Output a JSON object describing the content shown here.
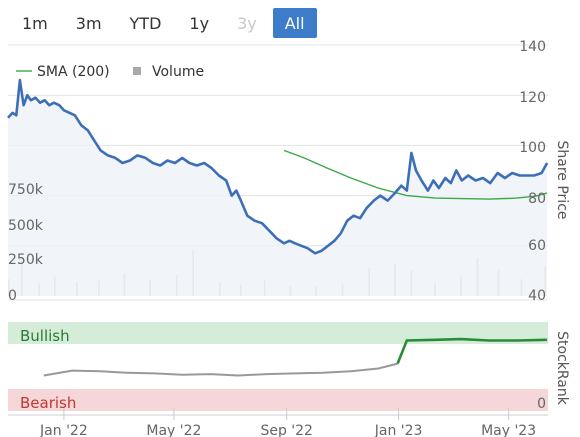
{
  "range_selector": {
    "buttons": [
      {
        "label": "1m",
        "state": "normal"
      },
      {
        "label": "3m",
        "state": "normal"
      },
      {
        "label": "YTD",
        "state": "normal"
      },
      {
        "label": "1y",
        "state": "normal"
      },
      {
        "label": "3y",
        "state": "disabled"
      },
      {
        "label": "All",
        "state": "active"
      }
    ]
  },
  "colors": {
    "price_line": "#3d6fb8",
    "sma_line": "#39a845",
    "volume_bar": "#c4c4c4",
    "stockrank_neutral": "#999999",
    "stockrank_bullish": "#2a8c3a",
    "bullish_band": "#d5ecd9",
    "bearish_band": "#f5d6d9",
    "price_fill": "#eef2f8",
    "button_active": "#3d7cc9"
  },
  "chart_data": {
    "type": "line",
    "legend": [
      {
        "label": "SMA (200)",
        "symbol": "line"
      },
      {
        "label": "Volume",
        "symbol": "square"
      }
    ],
    "price_axis": {
      "title": "Share Price",
      "ticks": [
        "140",
        "120",
        "100",
        "80",
        "60",
        "40"
      ],
      "range": [
        40,
        140
      ]
    },
    "volume_axis": {
      "ticks": [
        "750k",
        "500k",
        "250k",
        "0"
      ],
      "range": [
        0,
        1000000
      ]
    },
    "stockrank_axis": {
      "title": "StockRank",
      "ticks": [
        "0"
      ]
    },
    "x_ticks": [
      "Jan '22",
      "May '22",
      "Sep '22",
      "Jan '23",
      "May '23"
    ],
    "bands": {
      "bullish": "Bullish",
      "bearish": "Bearish"
    },
    "series": [
      {
        "name": "Share Price",
        "points": [
          [
            "2021-11-01",
            111
          ],
          [
            "2021-11-06",
            113
          ],
          [
            "2021-11-10",
            112
          ],
          [
            "2021-11-14",
            126
          ],
          [
            "2021-11-18",
            116
          ],
          [
            "2021-11-22",
            120
          ],
          [
            "2021-11-26",
            118
          ],
          [
            "2021-12-01",
            119
          ],
          [
            "2021-12-06",
            117
          ],
          [
            "2021-12-11",
            118
          ],
          [
            "2021-12-16",
            116
          ],
          [
            "2021-12-21",
            117
          ],
          [
            "2021-12-27",
            116
          ],
          [
            "2022-01-01",
            114
          ],
          [
            "2022-01-07",
            113
          ],
          [
            "2022-01-13",
            112
          ],
          [
            "2022-01-20",
            108
          ],
          [
            "2022-01-27",
            106
          ],
          [
            "2022-02-03",
            102
          ],
          [
            "2022-02-10",
            98
          ],
          [
            "2022-02-18",
            96
          ],
          [
            "2022-02-26",
            95
          ],
          [
            "2022-03-06",
            93
          ],
          [
            "2022-03-14",
            94
          ],
          [
            "2022-03-22",
            96
          ],
          [
            "2022-03-31",
            95
          ],
          [
            "2022-04-08",
            93
          ],
          [
            "2022-04-16",
            92
          ],
          [
            "2022-04-24",
            94
          ],
          [
            "2022-05-02",
            93
          ],
          [
            "2022-05-10",
            95
          ],
          [
            "2022-05-18",
            93
          ],
          [
            "2022-05-26",
            92
          ],
          [
            "2022-06-03",
            93
          ],
          [
            "2022-06-11",
            91
          ],
          [
            "2022-06-19",
            88
          ],
          [
            "2022-06-27",
            86
          ],
          [
            "2022-07-03",
            80
          ],
          [
            "2022-07-08",
            82
          ],
          [
            "2022-07-13",
            78
          ],
          [
            "2022-07-20",
            72
          ],
          [
            "2022-07-28",
            70
          ],
          [
            "2022-08-05",
            69
          ],
          [
            "2022-08-13",
            66
          ],
          [
            "2022-08-21",
            63
          ],
          [
            "2022-08-29",
            61
          ],
          [
            "2022-09-04",
            62
          ],
          [
            "2022-09-10",
            61
          ],
          [
            "2022-09-17",
            60
          ],
          [
            "2022-09-24",
            59
          ],
          [
            "2022-10-02",
            57
          ],
          [
            "2022-10-09",
            58
          ],
          [
            "2022-10-16",
            60
          ],
          [
            "2022-10-23",
            62
          ],
          [
            "2022-10-30",
            65
          ],
          [
            "2022-11-06",
            70
          ],
          [
            "2022-11-13",
            72
          ],
          [
            "2022-11-20",
            71
          ],
          [
            "2022-11-27",
            75
          ],
          [
            "2022-12-05",
            78
          ],
          [
            "2022-12-12",
            80
          ],
          [
            "2022-12-20",
            78
          ],
          [
            "2022-12-28",
            81
          ],
          [
            "2023-01-04",
            84
          ],
          [
            "2023-01-10",
            82
          ],
          [
            "2023-01-15",
            97
          ],
          [
            "2023-01-20",
            90
          ],
          [
            "2023-01-26",
            86
          ],
          [
            "2023-02-02",
            82
          ],
          [
            "2023-02-08",
            86
          ],
          [
            "2023-02-14",
            83
          ],
          [
            "2023-02-21",
            87
          ],
          [
            "2023-02-27",
            85
          ],
          [
            "2023-03-05",
            90
          ],
          [
            "2023-03-11",
            86
          ],
          [
            "2023-03-18",
            88
          ],
          [
            "2023-03-26",
            86
          ],
          [
            "2023-04-03",
            87
          ],
          [
            "2023-04-11",
            85
          ],
          [
            "2023-04-19",
            89
          ],
          [
            "2023-04-27",
            87
          ],
          [
            "2023-05-05",
            89
          ],
          [
            "2023-05-13",
            88
          ],
          [
            "2023-05-21",
            88
          ],
          [
            "2023-05-29",
            88
          ],
          [
            "2023-06-06",
            89
          ],
          [
            "2023-06-12",
            93
          ]
        ]
      },
      {
        "name": "SMA (200)",
        "points": [
          [
            "2022-08-29",
            98
          ],
          [
            "2022-09-20",
            95
          ],
          [
            "2022-10-15",
            91
          ],
          [
            "2022-11-10",
            87
          ],
          [
            "2022-12-10",
            83
          ],
          [
            "2023-01-10",
            80
          ],
          [
            "2023-02-10",
            79
          ],
          [
            "2023-03-10",
            78.8
          ],
          [
            "2023-04-10",
            78.6
          ],
          [
            "2023-05-10",
            79
          ],
          [
            "2023-05-31",
            79.8
          ],
          [
            "2023-06-12",
            81
          ]
        ]
      },
      {
        "name": "Volume",
        "points": [
          [
            "2021-11-02",
            120000
          ],
          [
            "2021-11-16",
            260000
          ],
          [
            "2021-12-05",
            90000
          ],
          [
            "2021-12-22",
            140000
          ],
          [
            "2022-01-15",
            100000
          ],
          [
            "2022-02-08",
            110000
          ],
          [
            "2022-03-08",
            160000
          ],
          [
            "2022-04-05",
            120000
          ],
          [
            "2022-05-04",
            150000
          ],
          [
            "2022-05-22",
            330000
          ],
          [
            "2022-06-20",
            100000
          ],
          [
            "2022-07-13",
            80000
          ],
          [
            "2022-08-08",
            110000
          ],
          [
            "2022-09-05",
            70000
          ],
          [
            "2022-10-03",
            70000
          ],
          [
            "2022-11-01",
            90000
          ],
          [
            "2022-11-30",
            200000
          ],
          [
            "2022-12-28",
            230000
          ],
          [
            "2023-01-15",
            180000
          ],
          [
            "2023-02-10",
            90000
          ],
          [
            "2023-03-10",
            140000
          ],
          [
            "2023-03-28",
            270000
          ],
          [
            "2023-04-20",
            190000
          ],
          [
            "2023-05-15",
            120000
          ],
          [
            "2023-06-10",
            210000
          ]
        ]
      },
      {
        "name": "StockRank",
        "points": [
          [
            "2021-12-10",
            35
          ],
          [
            "2022-01-10",
            42
          ],
          [
            "2022-02-10",
            41
          ],
          [
            "2022-03-10",
            39
          ],
          [
            "2022-04-10",
            38
          ],
          [
            "2022-05-10",
            36
          ],
          [
            "2022-06-10",
            37
          ],
          [
            "2022-07-10",
            35
          ],
          [
            "2022-08-10",
            37
          ],
          [
            "2022-09-10",
            38
          ],
          [
            "2022-10-10",
            39
          ],
          [
            "2022-11-10",
            41
          ],
          [
            "2022-12-10",
            45
          ],
          [
            "2022-12-31",
            52
          ],
          [
            "2023-01-10",
            85
          ],
          [
            "2023-02-10",
            86
          ],
          [
            "2023-03-10",
            87
          ],
          [
            "2023-04-10",
            85
          ],
          [
            "2023-05-10",
            85
          ],
          [
            "2023-06-12",
            86
          ]
        ]
      }
    ]
  }
}
